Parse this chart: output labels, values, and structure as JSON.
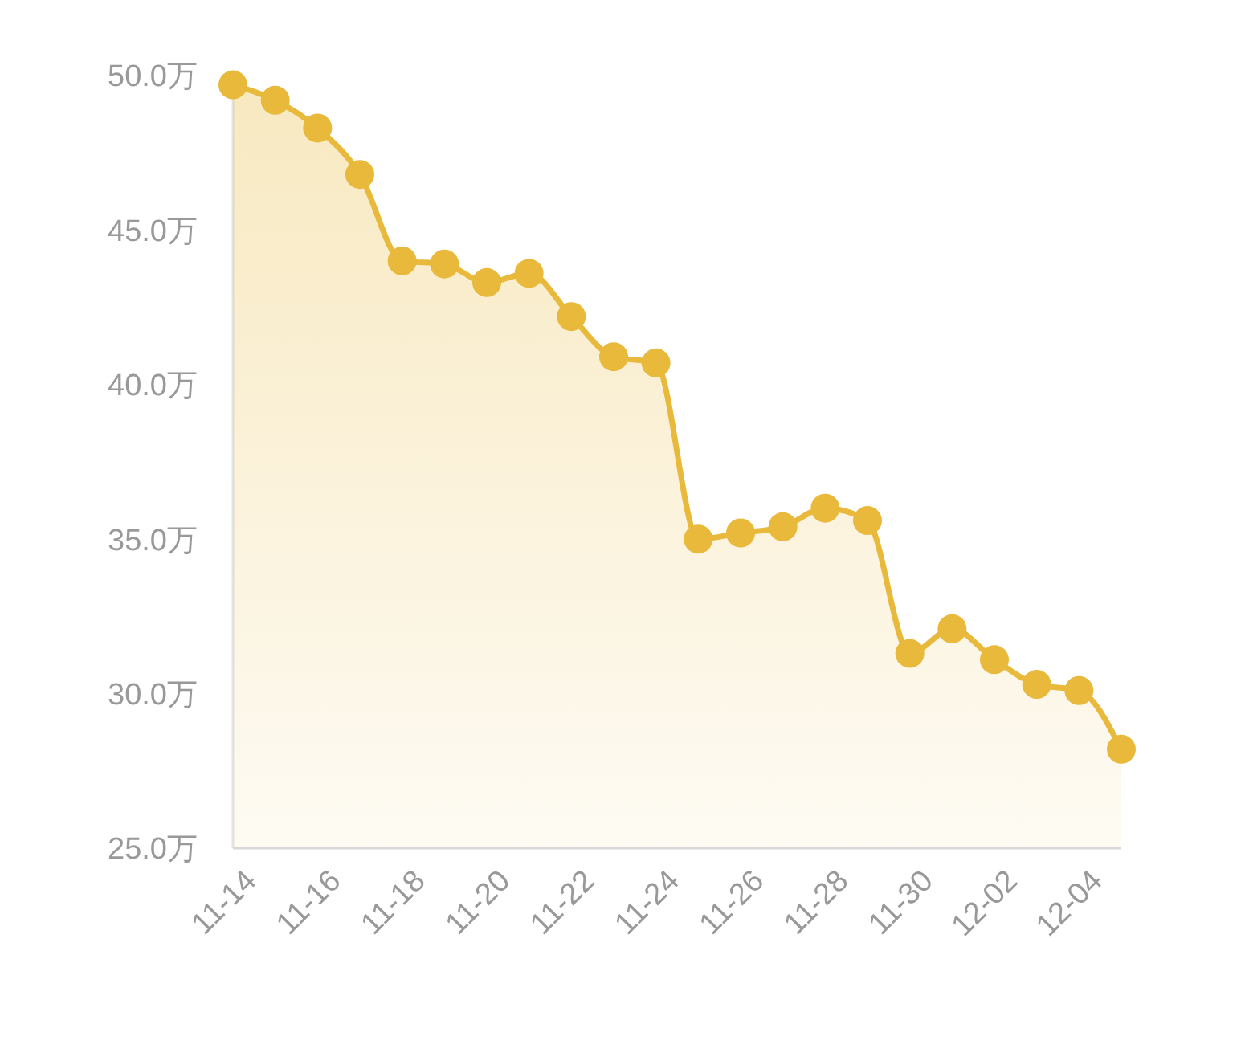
{
  "chart_data": {
    "type": "area",
    "categories": [
      "11-14",
      null,
      "11-16",
      null,
      "11-18",
      null,
      "11-20",
      null,
      "11-22",
      null,
      "11-24",
      null,
      "11-26",
      null,
      "11-28",
      null,
      "11-30",
      null,
      "12-02",
      null,
      "12-04",
      null
    ],
    "series": [
      {
        "color": "#e8b93a",
        "values": [
          49.7,
          49.2,
          48.3,
          46.8,
          44.0,
          43.9,
          43.3,
          43.6,
          42.2,
          40.9,
          40.7,
          35.0,
          35.2,
          35.4,
          36.0,
          35.6,
          31.3,
          32.1,
          31.1,
          30.3,
          30.1,
          28.2
        ]
      }
    ],
    "ylim": [
      25,
      50
    ],
    "yticks": [
      {
        "value": 25,
        "label": "25.0万"
      },
      {
        "value": 30,
        "label": "30.0万"
      },
      {
        "value": 35,
        "label": "35.0万"
      },
      {
        "value": 40,
        "label": "40.0万"
      },
      {
        "value": 45,
        "label": "45.0万"
      },
      {
        "value": 50,
        "label": "50.0万"
      }
    ],
    "grid": false,
    "marker": "circle"
  }
}
